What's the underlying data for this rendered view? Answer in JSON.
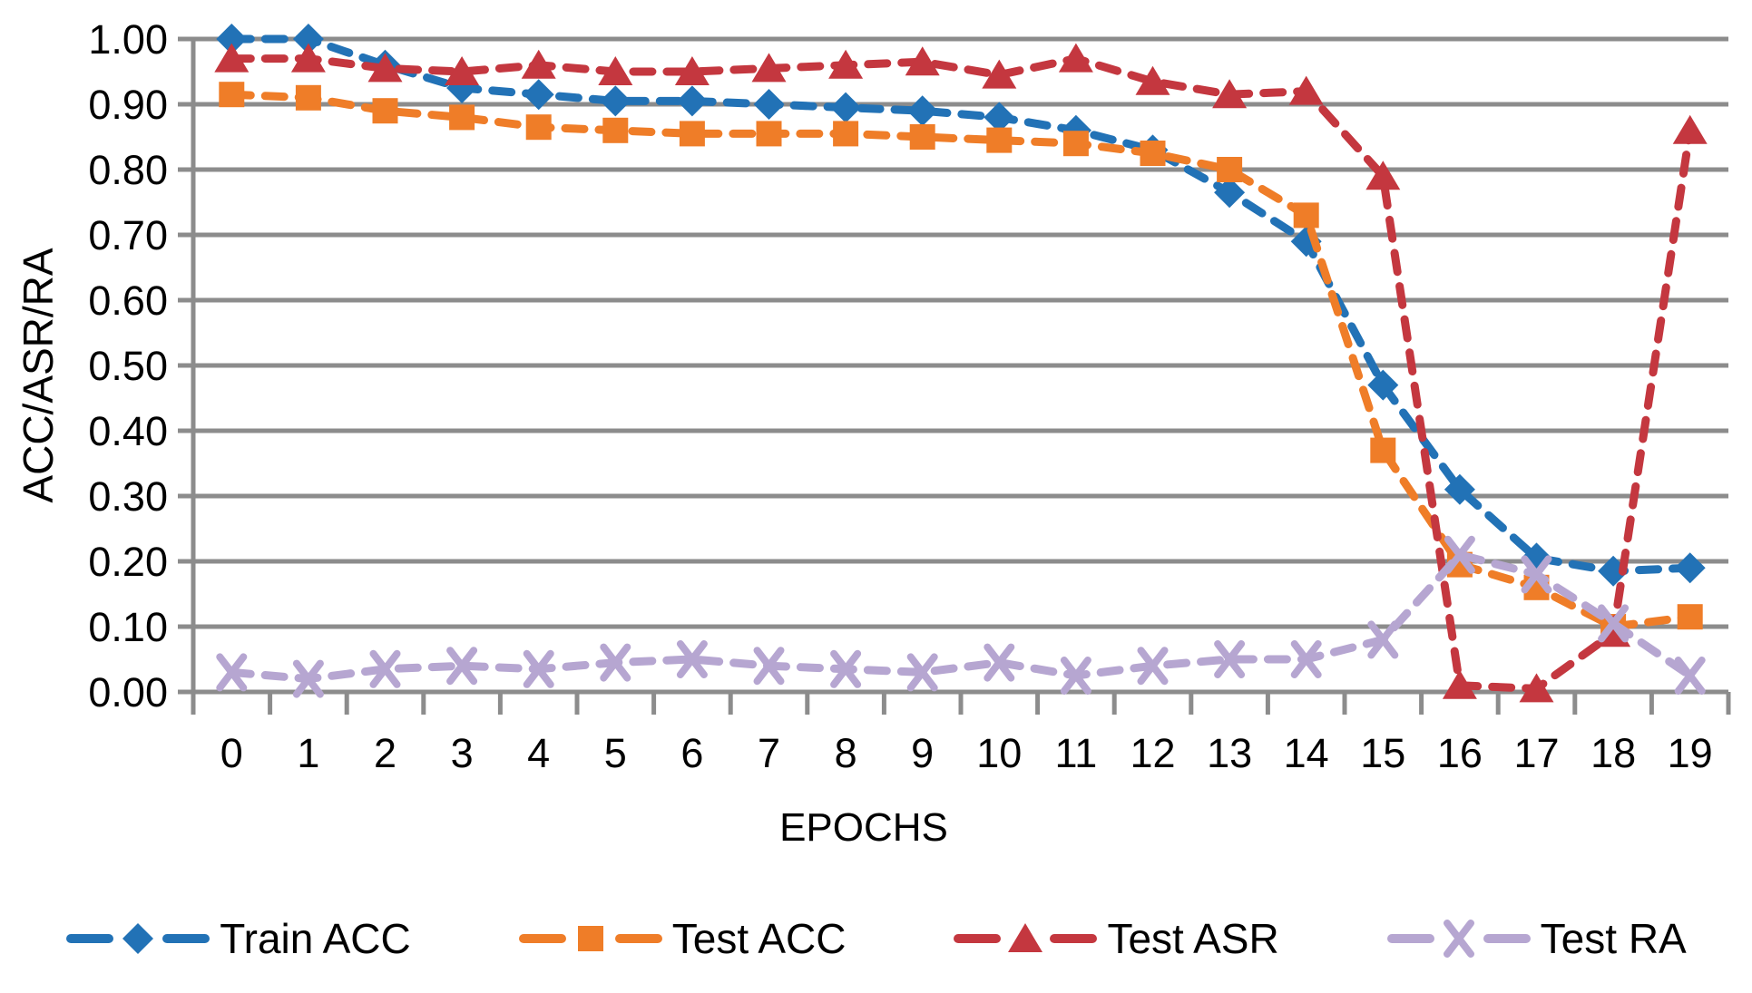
{
  "figure": {
    "background": "#ffffff",
    "y_axis_title": "ACC/ASR/RA",
    "x_axis_title": "EPOCHS"
  },
  "colors": {
    "gridline": "#8C8C8C",
    "axis": "#8C8C8C",
    "text": "#000000"
  },
  "chart_data": {
    "type": "line",
    "title": "",
    "xlabel": "EPOCHS",
    "ylabel": "ACC/ASR/RA",
    "x": [
      0,
      1,
      2,
      3,
      4,
      5,
      6,
      7,
      8,
      9,
      10,
      11,
      12,
      13,
      14,
      15,
      16,
      17,
      18,
      19
    ],
    "x_tick_labels": [
      "0",
      "1",
      "2",
      "3",
      "4",
      "5",
      "6",
      "7",
      "8",
      "9",
      "10",
      "11",
      "12",
      "13",
      "14",
      "15",
      "16",
      "17",
      "18",
      "19"
    ],
    "ylim": [
      0.0,
      1.0
    ],
    "y_ticks": [
      0.0,
      0.1,
      0.2,
      0.3,
      0.4,
      0.5,
      0.6,
      0.7,
      0.8,
      0.9,
      1.0
    ],
    "y_tick_labels": [
      "0.00",
      "0.10",
      "0.20",
      "0.30",
      "0.40",
      "0.50",
      "0.60",
      "0.70",
      "0.80",
      "0.90",
      "1.00"
    ],
    "grid": true,
    "line_style": "dashed",
    "legend_position": "bottom",
    "series": [
      {
        "name": "Train ACC",
        "color": "#2272B6",
        "marker": "diamond",
        "values": [
          1.0,
          1.0,
          0.96,
          0.925,
          0.915,
          0.905,
          0.905,
          0.9,
          0.895,
          0.89,
          0.88,
          0.86,
          0.83,
          0.765,
          0.69,
          0.47,
          0.31,
          0.205,
          0.185,
          0.19
        ]
      },
      {
        "name": "Test ACC",
        "color": "#EF7D28",
        "marker": "square",
        "values": [
          0.915,
          0.91,
          0.89,
          0.88,
          0.865,
          0.86,
          0.855,
          0.855,
          0.855,
          0.85,
          0.845,
          0.84,
          0.825,
          0.8,
          0.73,
          0.37,
          0.195,
          0.16,
          0.1,
          0.115
        ]
      },
      {
        "name": "Test ASR",
        "color": "#C4373F",
        "marker": "triangle",
        "values": [
          0.97,
          0.97,
          0.955,
          0.95,
          0.96,
          0.95,
          0.95,
          0.955,
          0.96,
          0.965,
          0.945,
          0.97,
          0.935,
          0.915,
          0.92,
          0.79,
          0.01,
          0.005,
          0.09,
          0.86
        ]
      },
      {
        "name": "Test RA",
        "color": "#B6A6D1",
        "marker": "x",
        "values": [
          0.03,
          0.02,
          0.035,
          0.04,
          0.035,
          0.045,
          0.05,
          0.04,
          0.035,
          0.03,
          0.045,
          0.025,
          0.04,
          0.05,
          0.05,
          0.08,
          0.21,
          0.18,
          0.105,
          0.025
        ]
      }
    ]
  }
}
